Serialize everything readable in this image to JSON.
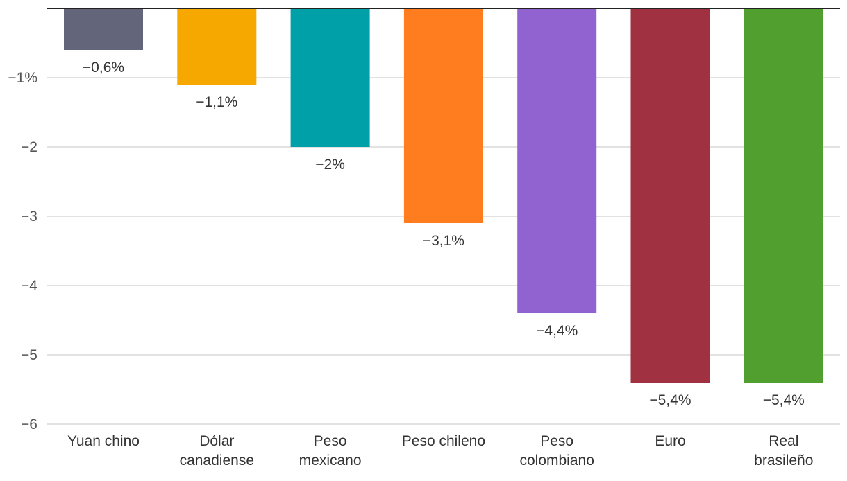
{
  "chart_data": {
    "type": "bar",
    "title": "",
    "xlabel": "",
    "ylabel": "",
    "categories": [
      [
        "Yuan chino"
      ],
      [
        "Dólar",
        "canadiense"
      ],
      [
        "Peso",
        "mexicano"
      ],
      [
        "Peso chileno"
      ],
      [
        "Peso",
        "colombiano"
      ],
      [
        "Euro"
      ],
      [
        "Real",
        "brasileño"
      ]
    ],
    "values": [
      -0.6,
      -1.1,
      -2,
      -3.1,
      -4.4,
      -5.4,
      -5.4
    ],
    "data_labels": [
      "−0,6%",
      "−1,1%",
      "−2%",
      "−3,1%",
      "−4,4%",
      "−5,4%",
      "−5,4%"
    ],
    "colors": [
      "#63657a",
      "#f6a800",
      "#00a0a8",
      "#ff7c1f",
      "#9163d0",
      "#9f3140",
      "#51a02f"
    ],
    "ylim": [
      -6,
      0
    ],
    "y_ticks": [
      {
        "value": -1,
        "label": "−1%"
      },
      {
        "value": -2,
        "label": "−2"
      },
      {
        "value": -3,
        "label": "−3"
      },
      {
        "value": -4,
        "label": "−4"
      },
      {
        "value": -5,
        "label": "−5"
      },
      {
        "value": -6,
        "label": "−6"
      }
    ],
    "grid": true,
    "legend": "none"
  }
}
